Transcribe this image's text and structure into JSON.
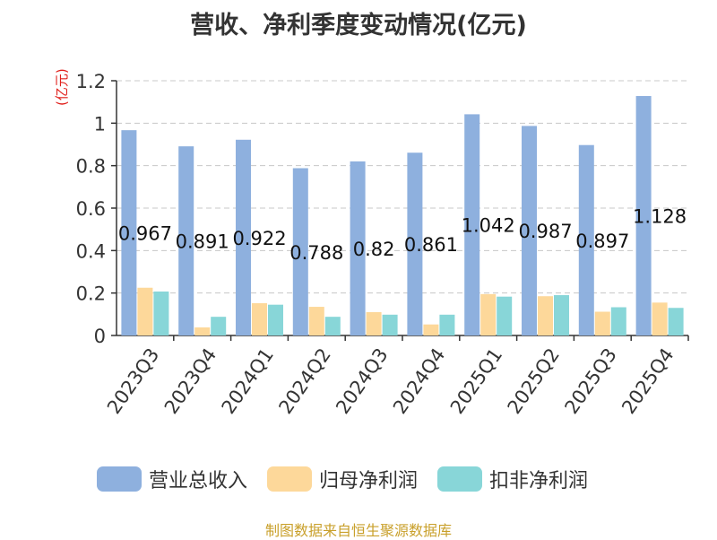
{
  "chart_data": {
    "type": "bar",
    "title": "营收、净利季度变动情况(亿元)",
    "ylabel": "(亿元)",
    "ylim": [
      0,
      1.2
    ],
    "yticks": [
      "0",
      "0.2",
      "0.4",
      "0.6",
      "0.8",
      "1",
      "1.2"
    ],
    "grid": true,
    "legend_position": "bottom",
    "categories": [
      "2023Q3",
      "2023Q4",
      "2024Q1",
      "2024Q2",
      "2024Q3",
      "2024Q4",
      "2025Q1",
      "2025Q2",
      "2025Q3",
      "2025Q4"
    ],
    "series": [
      {
        "name": "营业总收入",
        "color": "#8eb0de",
        "values": [
          0.967,
          0.891,
          0.922,
          0.788,
          0.82,
          0.861,
          1.042,
          0.987,
          0.897,
          1.128
        ]
      },
      {
        "name": "归母净利润",
        "color": "#fdd89a",
        "values": [
          0.225,
          0.038,
          0.152,
          0.135,
          0.11,
          0.052,
          0.195,
          0.185,
          0.112,
          0.155
        ]
      },
      {
        "name": "扣非净利润",
        "color": "#88d6d8",
        "values": [
          0.207,
          0.088,
          0.145,
          0.088,
          0.098,
          0.098,
          0.183,
          0.19,
          0.133,
          0.13
        ]
      }
    ],
    "data_labels": [
      "0.967",
      "0.891",
      "0.922",
      "0.788",
      "0.82",
      "0.861",
      "1.042",
      "0.987",
      "0.897",
      "1.128"
    ]
  },
  "source": "制图数据来自恒生聚源数据库"
}
